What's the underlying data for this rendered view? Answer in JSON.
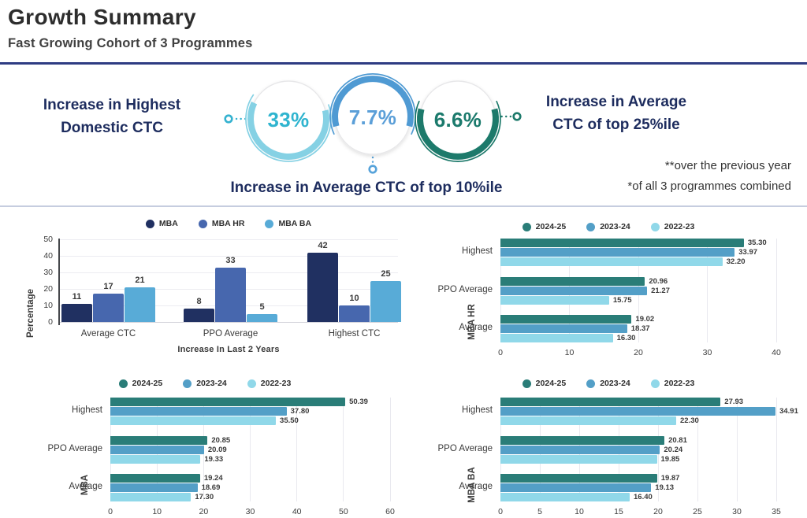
{
  "header": {
    "title": "Growth Summary",
    "subtitle": "Fast Growing Cohort of 3 Programmes"
  },
  "theme": {
    "navy_text": "#1d2c5e",
    "top_rule": "#2e3c82",
    "separator": "#c6cddf",
    "vertical_palette": [
      "#203061",
      "#4767ae",
      "#58abd7"
    ],
    "horizontal_palette": [
      "#2a7d78",
      "#539fc7",
      "#90d8e9"
    ]
  },
  "infographic": {
    "badges": [
      {
        "value": "33%",
        "text_color": "#2fb4cf",
        "arc_color": "#85d1e4",
        "arc_side": "bottom"
      },
      {
        "value": "7.7%",
        "text_color": "#5b9fd8",
        "arc_color": "#4f9ad3",
        "arc_side": "top"
      },
      {
        "value": "6.6%",
        "text_color": "#1b7a6c",
        "arc_color": "#1d7a6b",
        "arc_side": "bottom"
      }
    ],
    "left_label": [
      "Increase in Highest",
      "Domestic CTC"
    ],
    "right_label": [
      "Increase in Average",
      "CTC of top 25%ile"
    ],
    "bottom_label": "Increase in Average CTC of top 10%ile",
    "footnotes": [
      "**over the previous year",
      "*of all 3 programmes combined"
    ]
  },
  "chart_data": [
    {
      "id": "growth",
      "type": "bar",
      "orientation": "vertical",
      "legend": [
        "MBA",
        "MBA HR",
        "MBA BA"
      ],
      "legend_position": "top",
      "colors": [
        "#203061",
        "#4767ae",
        "#58abd7"
      ],
      "categories": [
        "Average CTC",
        "PPO Average",
        "Highest CTC"
      ],
      "series": [
        {
          "name": "MBA",
          "values": [
            11,
            8,
            42
          ],
          "labels": [
            "11",
            "8",
            "42"
          ]
        },
        {
          "name": "MBA HR",
          "values": [
            17,
            33,
            10
          ],
          "labels": [
            "17",
            "33",
            "10"
          ]
        },
        {
          "name": "MBA BA",
          "values": [
            21,
            5,
            25
          ],
          "labels": [
            "21",
            "5",
            "25"
          ]
        }
      ],
      "xlabel": "Increase In Last 2 Years",
      "ylabel": "Percentage",
      "yticks": [
        0,
        10,
        20,
        30,
        40,
        50
      ],
      "ymax": 50,
      "grid": true
    },
    {
      "id": "mba-hr",
      "type": "bar",
      "orientation": "horizontal",
      "legend": [
        "2024-25",
        "2023-24",
        "2022-23"
      ],
      "legend_position": "top",
      "colors": [
        "#2a7d78",
        "#539fc7",
        "#90d8e9"
      ],
      "categories": [
        "Highest",
        "PPO Average",
        "Average"
      ],
      "series": [
        {
          "name": "2024-25",
          "values": [
            35.3,
            20.96,
            19.02
          ],
          "labels": [
            "35.30",
            "20.96",
            "19.02"
          ]
        },
        {
          "name": "2023-24",
          "values": [
            33.97,
            21.27,
            18.37
          ],
          "labels": [
            "33.97",
            "21.27",
            "18.37"
          ]
        },
        {
          "name": "2022-23",
          "values": [
            32.2,
            15.75,
            16.3
          ],
          "labels": [
            "32.20",
            "15.75",
            "16.30"
          ]
        }
      ],
      "ylabel": "MBA HR",
      "xticks": [
        0,
        10,
        20,
        30,
        40
      ],
      "xmax": 40,
      "grid": true
    },
    {
      "id": "mba",
      "type": "bar",
      "orientation": "horizontal",
      "legend": [
        "2024-25",
        "2023-24",
        "2022-23"
      ],
      "legend_position": "top",
      "colors": [
        "#2a7d78",
        "#539fc7",
        "#90d8e9"
      ],
      "categories": [
        "Highest",
        "PPO Average",
        "Average"
      ],
      "series": [
        {
          "name": "2024-25",
          "values": [
            50.39,
            20.85,
            19.24
          ],
          "labels": [
            "50.39",
            "20.85",
            "19.24"
          ]
        },
        {
          "name": "2023-24",
          "values": [
            37.8,
            20.09,
            18.69
          ],
          "labels": [
            "37.80",
            "20.09",
            "18.69"
          ]
        },
        {
          "name": "2022-23",
          "values": [
            35.5,
            19.33,
            17.3
          ],
          "labels": [
            "35.50",
            "19.33",
            "17.30"
          ]
        }
      ],
      "ylabel": "MBA",
      "xticks": [
        0,
        10,
        20,
        30,
        40,
        50,
        60
      ],
      "xmax": 60,
      "grid": true
    },
    {
      "id": "mba-ba",
      "type": "bar",
      "orientation": "horizontal",
      "legend": [
        "2024-25",
        "2023-24",
        "2022-23"
      ],
      "legend_position": "top",
      "colors": [
        "#2a7d78",
        "#539fc7",
        "#90d8e9"
      ],
      "categories": [
        "Highest",
        "PPO Average",
        "Average"
      ],
      "series": [
        {
          "name": "2024-25",
          "values": [
            27.93,
            20.81,
            19.87
          ],
          "labels": [
            "27.93",
            "20.81",
            "19.87"
          ]
        },
        {
          "name": "2023-24",
          "values": [
            34.91,
            20.24,
            19.13
          ],
          "labels": [
            "34.91",
            "20.24",
            "19.13"
          ]
        },
        {
          "name": "2022-23",
          "values": [
            22.3,
            19.85,
            16.4
          ],
          "labels": [
            "22.30",
            "19.85",
            "16.40"
          ]
        }
      ],
      "ylabel": "MBA BA",
      "xticks": [
        0,
        5,
        10,
        15,
        20,
        25,
        30,
        35
      ],
      "xmax": 35,
      "grid": true
    }
  ]
}
